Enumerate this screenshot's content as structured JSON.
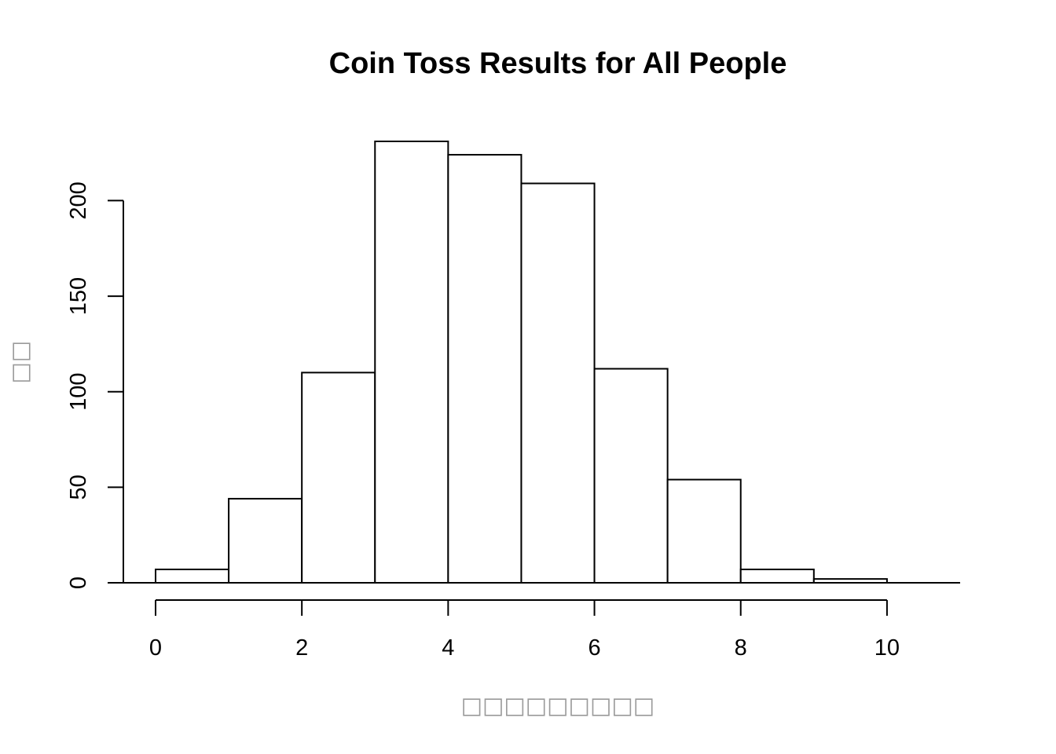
{
  "chart_data": {
    "type": "bar",
    "title": "Coin Toss Results for All People",
    "xlabel": "□□□□□□□□□",
    "ylabel": "□□",
    "bins": [
      {
        "x0": 0,
        "x1": 1,
        "count": 7
      },
      {
        "x0": 1,
        "x1": 2,
        "count": 44
      },
      {
        "x0": 2,
        "x1": 3,
        "count": 110
      },
      {
        "x0": 3,
        "x1": 4,
        "count": 231
      },
      {
        "x0": 4,
        "x1": 5,
        "count": 224
      },
      {
        "x0": 5,
        "x1": 6,
        "count": 209
      },
      {
        "x0": 6,
        "x1": 7,
        "count": 112
      },
      {
        "x0": 7,
        "x1": 8,
        "count": 54
      },
      {
        "x0": 8,
        "x1": 9,
        "count": 7
      },
      {
        "x0": 9,
        "x1": 10,
        "count": 2
      }
    ],
    "xlim": [
      0,
      11
    ],
    "ylim": [
      0,
      231
    ],
    "x_ticks": [
      0,
      2,
      4,
      6,
      8,
      10
    ],
    "y_ticks": [
      0,
      50,
      100,
      150,
      200
    ],
    "grid": false,
    "legend": "none"
  }
}
